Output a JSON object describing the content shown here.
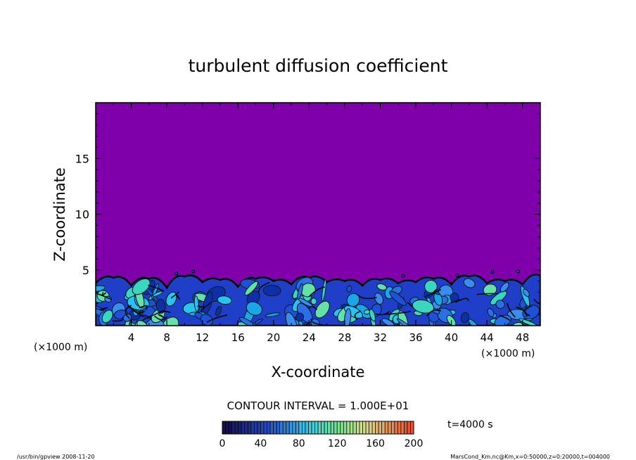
{
  "chart_data": {
    "type": "heatmap",
    "title": "turbulent diffusion coefficient",
    "xlabel": "X-coordinate",
    "ylabel": "Z-coordinate",
    "x_unit_left": "(×1000 m)",
    "x_unit_right": "(×1000 m)",
    "xlim": [
      0,
      50
    ],
    "ylim": [
      0,
      20
    ],
    "x_ticks": [
      4,
      8,
      12,
      16,
      20,
      24,
      28,
      32,
      36,
      40,
      44,
      48
    ],
    "y_ticks": [
      5,
      10,
      15
    ],
    "x_tick_labels": [
      "4",
      "8",
      "12",
      "16",
      "20",
      "24",
      "28",
      "32",
      "36",
      "40",
      "44",
      "48"
    ],
    "y_tick_labels": [
      "5",
      "10",
      "15"
    ],
    "turbulent_layer_top_km": [
      3.8,
      4.3,
      3.6,
      4.2,
      3.4,
      4.4,
      3.9,
      4.1,
      3.5,
      4.2,
      4.0,
      3.7,
      4.3,
      3.9,
      4.0,
      3.6,
      4.1,
      3.8,
      3.9,
      4.2,
      3.7,
      4.4,
      3.8,
      4.0,
      3.7,
      4.5
    ],
    "background_color": "#7f00aa",
    "contour_interval_label": "CONTOUR INTERVAL = 1.000E+01",
    "colorbar": {
      "min": 0,
      "max": 200,
      "tick_labels": [
        "0",
        "40",
        "80",
        "120",
        "160",
        "200"
      ],
      "tick_values": [
        0,
        40,
        80,
        120,
        160,
        200
      ]
    },
    "time_label": "t=4000 s",
    "footer_left": "/usr/bin/gpview   2008-11-20",
    "footer_right": "MarsCond_Km.nc@Km,x=0:50000,z=0:20000,t=004000"
  }
}
